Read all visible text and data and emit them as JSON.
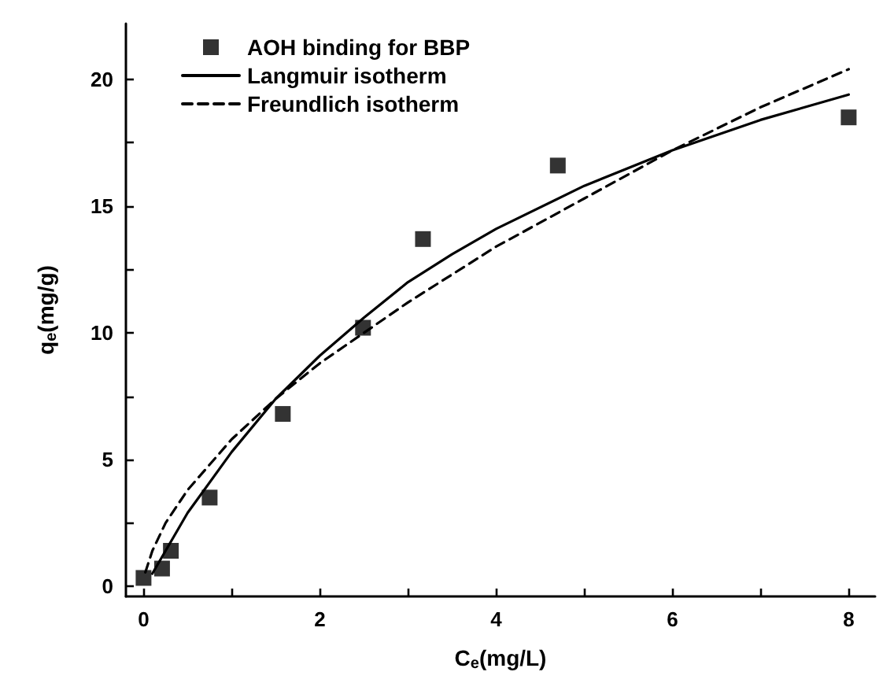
{
  "chart_data": {
    "type": "scatter",
    "xlabel": "C$_{e}$(mg/L)",
    "ylabel": "q$_{e}$(mg/g)",
    "xlim": [
      -0.2,
      8.3
    ],
    "xticks": [
      0,
      2,
      4,
      6,
      8
    ],
    "ylim": [
      -0.4,
      22.2
    ],
    "yticks": [
      0,
      5,
      10,
      15,
      20
    ],
    "grid": false,
    "legend": "top left",
    "series": [
      {
        "name": "AOH binding for BBP",
        "marker": "square",
        "color": "#000000",
        "x": [
          0,
          0.21,
          0.31,
          0.75,
          1.58,
          2.49,
          3.17,
          4.7,
          8.0
        ],
        "values": [
          0.33,
          0.7,
          1.4,
          3.5,
          6.8,
          10.2,
          13.7,
          16.6,
          18.5
        ]
      },
      {
        "name": "Langmuir isotherm",
        "type": "line",
        "line_style": "solid",
        "marker": "none",
        "color": "#000000",
        "x": [
          0.1,
          0.5,
          1,
          1.5,
          2,
          2.5,
          3,
          3.5,
          4,
          5,
          6,
          7,
          8
        ],
        "values": [
          0.5,
          2.9,
          5.3,
          7.4,
          9.1,
          10.6,
          12.0,
          13.1,
          14.1,
          15.8,
          17.2,
          18.4,
          19.4
        ]
      },
      {
        "name": "Freundlich isotherm",
        "type": "line",
        "line_style": "dashed",
        "marker": "none",
        "color": "#000000",
        "x": [
          0.02,
          0.1,
          0.25,
          0.5,
          1,
          1.5,
          2,
          3,
          4,
          5,
          6,
          7,
          8
        ],
        "values": [
          0.55,
          1.4,
          2.5,
          3.8,
          5.8,
          7.4,
          8.8,
          11.2,
          13.4,
          15.3,
          17.2,
          18.9,
          20.4
        ]
      }
    ]
  }
}
